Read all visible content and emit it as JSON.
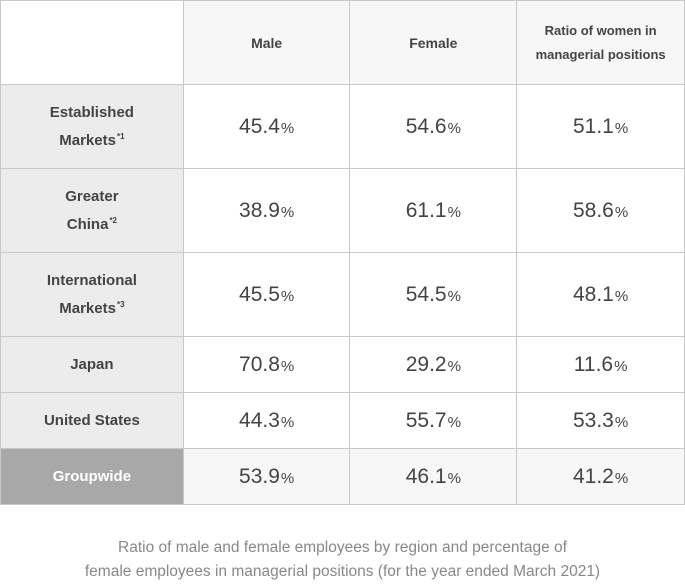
{
  "table": {
    "columns": [
      "Male",
      "Female",
      "Ratio of women in managerial positions"
    ],
    "percent_sign": "%",
    "rows": [
      {
        "label_lines": [
          "Established",
          "Markets"
        ],
        "note": "*1",
        "values": [
          "45.4",
          "54.6",
          "51.1"
        ]
      },
      {
        "label_lines": [
          "Greater",
          "China"
        ],
        "note": "*2",
        "values": [
          "38.9",
          "61.1",
          "58.6"
        ]
      },
      {
        "label_lines": [
          "International",
          "Markets"
        ],
        "note": "*3",
        "values": [
          "45.5",
          "54.5",
          "48.1"
        ]
      },
      {
        "label_lines": [
          "Japan"
        ],
        "note": "",
        "values": [
          "70.8",
          "29.2",
          "11.6"
        ]
      },
      {
        "label_lines": [
          "United States"
        ],
        "note": "",
        "values": [
          "44.3",
          "55.7",
          "53.3"
        ]
      },
      {
        "label_lines": [
          "Groupwide"
        ],
        "note": "",
        "values": [
          "53.9",
          "46.1",
          "41.2"
        ],
        "highlight": true
      }
    ]
  },
  "caption": {
    "line1": "Ratio of male and female employees by region and percentage of",
    "line2": "female employees in managerial positions (for the year ended March 2021)"
  },
  "colors": {
    "row_header_bg": "#ececec",
    "groupwide_header_bg": "#a8a8a8",
    "column_header_bg": "#f7f7f7",
    "border": "#c8c8c8"
  }
}
